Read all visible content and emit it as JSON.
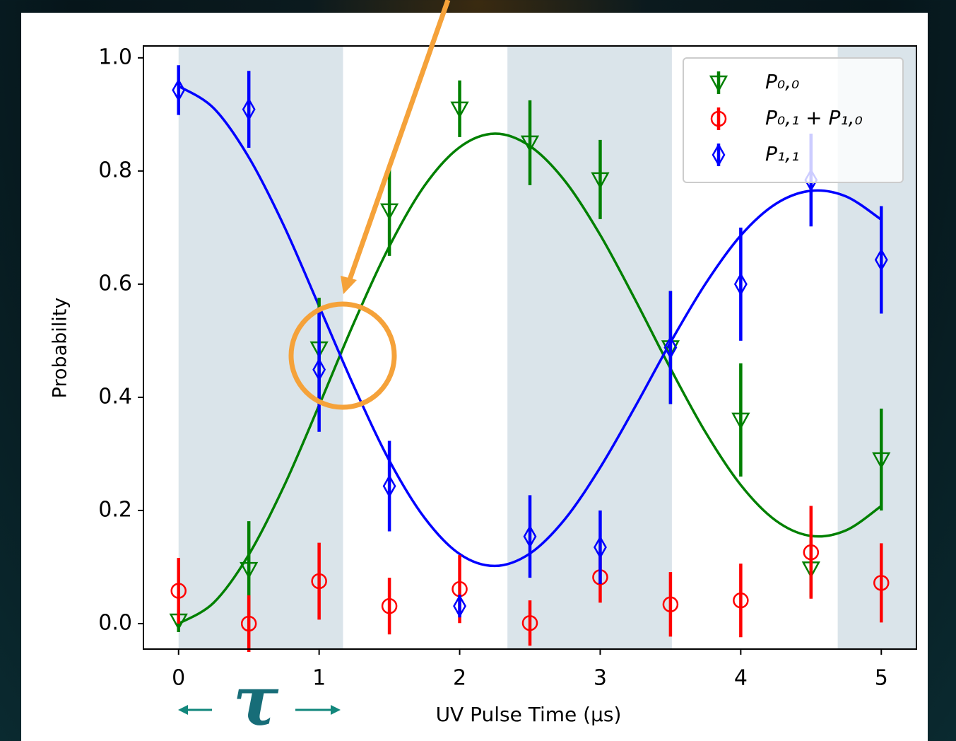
{
  "chart_data": {
    "type": "scatter",
    "xlabel": "UV Pulse Time (μs)",
    "ylabel": "Probability",
    "annotation": "τ",
    "x": [
      0,
      0.5,
      1,
      1.5,
      2,
      2.5,
      3,
      3.5,
      4,
      4.5,
      5
    ],
    "xlim": [
      -0.25,
      5.25
    ],
    "ylim": [
      -0.045,
      1.021
    ],
    "xticks": [
      0,
      1,
      2,
      3,
      4,
      5
    ],
    "yticks": [
      {
        "value": 0,
        "label": "0.0"
      },
      {
        "value": 0.2,
        "label": "0.2"
      },
      {
        "value": 0.4,
        "label": "0.4"
      },
      {
        "value": 0.6,
        "label": "0.6"
      },
      {
        "value": 0.8,
        "label": "0.8"
      },
      {
        "value": 1,
        "label": "1.0"
      }
    ],
    "legend": "upper right",
    "shaded_regions": [
      [
        0,
        1.17
      ],
      [
        2.34,
        3.51
      ],
      [
        4.69,
        5.25
      ]
    ],
    "shade_color": "#dae4ea",
    "fit_x": [
      0,
      0.25,
      0.5,
      0.75,
      1,
      1.25,
      1.5,
      1.75,
      2,
      2.25,
      2.5,
      2.75,
      3,
      3.25,
      3.5,
      3.75,
      4,
      4.25,
      4.5,
      4.75,
      5
    ],
    "series": [
      {
        "name": "P₀,₀",
        "color": "#008000",
        "marker": "triangle_down",
        "values": [
          0.005,
          0.096,
          0.486,
          0.73,
          0.91,
          0.85,
          0.785,
          0.488,
          0.36,
          0.097,
          0.29
        ],
        "errors": [
          0.02,
          0.085,
          0.09,
          0.08,
          0.05,
          0.075,
          0.07,
          0.1,
          0.1,
          0.05,
          0.09
        ],
        "fit_values": [
          0,
          0.037,
          0.122,
          0.243,
          0.386,
          0.533,
          0.667,
          0.774,
          0.842,
          0.866,
          0.844,
          0.782,
          0.687,
          0.572,
          0.451,
          0.338,
          0.245,
          0.182,
          0.155,
          0.165,
          0.208
        ]
      },
      {
        "name": "P₀,₁ + P₁,₀",
        "color": "#ff0000",
        "marker": "circle",
        "values": [
          0.058,
          0.0,
          0.075,
          0.031,
          0.061,
          0.001,
          0.082,
          0.034,
          0.041,
          0.126,
          0.072
        ],
        "errors": [
          0.058,
          0.05,
          0.068,
          0.05,
          0.06,
          0.04,
          0.045,
          0.057,
          0.065,
          0.082,
          0.07
        ]
      },
      {
        "name": "P₁,₁",
        "color": "#0000ff",
        "marker": "diamond",
        "values": [
          0.943,
          0.909,
          0.449,
          0.243,
          0.031,
          0.154,
          0.135,
          0.488,
          0.6,
          0.784,
          0.643
        ],
        "errors": [
          0.044,
          0.068,
          0.11,
          0.08,
          0.02,
          0.073,
          0.065,
          0.1,
          0.1,
          0.082,
          0.095
        ],
        "fit_values": [
          0.95,
          0.911,
          0.824,
          0.703,
          0.561,
          0.418,
          0.288,
          0.187,
          0.123,
          0.102,
          0.124,
          0.185,
          0.276,
          0.384,
          0.497,
          0.601,
          0.686,
          0.742,
          0.765,
          0.755,
          0.714
        ]
      }
    ]
  }
}
